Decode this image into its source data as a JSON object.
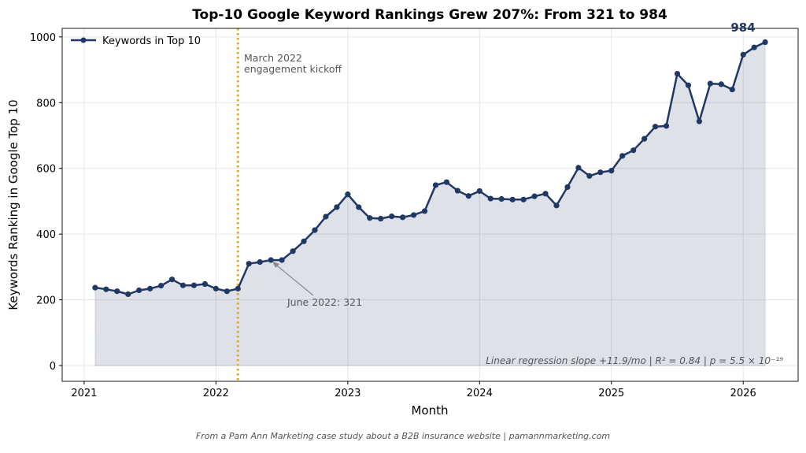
{
  "chart_data": {
    "type": "line",
    "title": "Top-10 Google Keyword Rankings Grew 207%: From 321 to 984",
    "xlabel": "Month",
    "ylabel": "Keywords Ranking in Google Top 10",
    "xlim": [
      "2020-11",
      "2026-06"
    ],
    "ylim": [
      -48,
      1026
    ],
    "x_ticks": [
      "2021",
      "2022",
      "2023",
      "2024",
      "2025",
      "2026"
    ],
    "y_ticks": [
      0,
      200,
      400,
      600,
      800,
      1000
    ],
    "grid": true,
    "fill_under": true,
    "legend": {
      "position": "top-left",
      "entries": [
        "Keywords in Top 10"
      ]
    },
    "series": [
      {
        "name": "Keywords in Top 10",
        "color": "#1f3864",
        "start_month": "2021-02",
        "values": [
          237,
          232,
          226,
          217,
          229,
          234,
          243,
          262,
          244,
          244,
          248,
          234,
          226,
          234,
          310,
          315,
          321,
          321,
          348,
          378,
          412,
          453,
          482,
          521,
          482,
          449,
          447,
          454,
          451,
          458,
          470,
          549,
          558,
          532,
          516,
          531,
          508,
          507,
          505,
          505,
          515,
          523,
          487,
          543,
          602,
          577,
          588,
          593,
          638,
          655,
          690,
          727,
          729,
          888,
          853,
          743,
          858,
          856,
          840,
          946,
          968,
          984
        ]
      }
    ],
    "annotations": {
      "kickoff_line": {
        "month": "2022-03",
        "color": "#e8a820",
        "label_line1": "March 2022",
        "label_line2": "engagement kickoff"
      },
      "june_point": {
        "month": "2022-06",
        "value": 321,
        "label": "June 2022: 321"
      },
      "final_label": "984",
      "regression_note": "Linear regression slope +11.9/mo  |  R² = 0.84  |  p = 5.5 × 10⁻¹⁹"
    }
  },
  "footer": "From a Pam Ann Marketing case study about a B2B insurance website  |  pamannmarketing.com"
}
